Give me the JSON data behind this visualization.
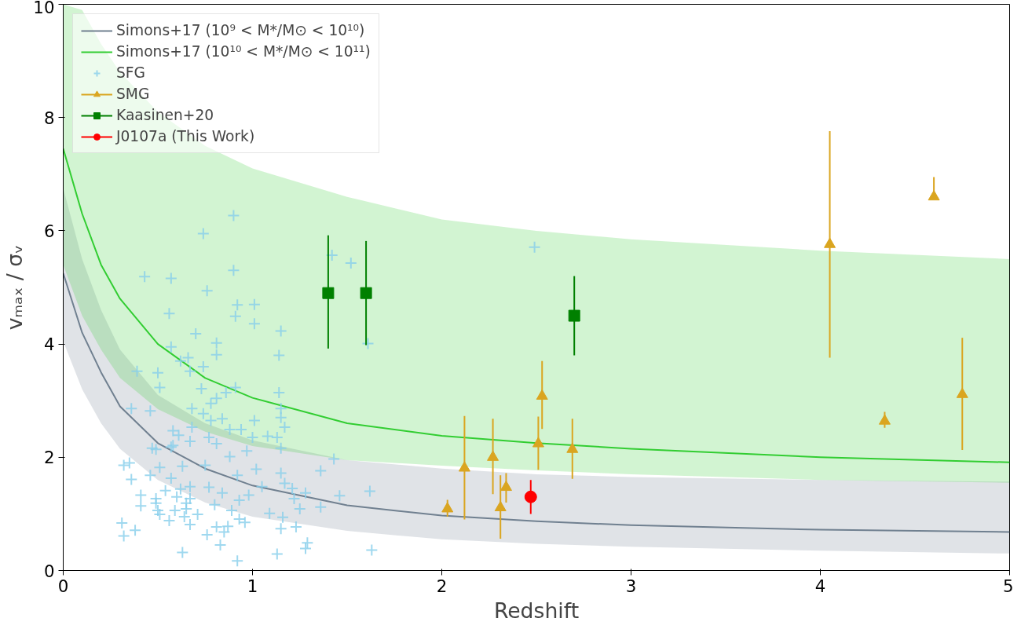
{
  "chart_data": {
    "type": "scatter",
    "xlabel": "Redshift",
    "ylabel": "vₘₐₓ / σᵥ",
    "xlim": [
      0,
      5
    ],
    "ylim": [
      0,
      10
    ],
    "xticks": [
      0,
      1,
      2,
      3,
      4,
      5
    ],
    "yticks": [
      0,
      2,
      4,
      6,
      8,
      10
    ],
    "grid": false,
    "legend": "top left",
    "series": [
      {
        "type": "line",
        "name": "Simons+17 (10⁹ < M*/M⊙ < 10¹⁰)",
        "color": "#708090",
        "x": [
          0,
          0.1,
          0.2,
          0.3,
          0.5,
          0.75,
          1,
          1.5,
          2,
          2.5,
          3,
          4,
          5
        ],
        "values": [
          5.25,
          4.2,
          3.5,
          2.9,
          2.25,
          1.8,
          1.5,
          1.15,
          0.97,
          0.87,
          0.8,
          0.72,
          0.68
        ],
        "lower": [
          4.05,
          3.2,
          2.6,
          2.15,
          1.6,
          1.2,
          0.95,
          0.7,
          0.55,
          0.47,
          0.42,
          0.35,
          0.3
        ],
        "upper": [
          6.75,
          5.5,
          4.6,
          3.9,
          3.1,
          2.6,
          2.3,
          1.95,
          1.8,
          1.7,
          1.65,
          1.6,
          1.57
        ]
      },
      {
        "type": "line",
        "name": "Simons+17 (10¹⁰ < M*/M⊙ < 10¹¹)",
        "color": "#32cd32",
        "x": [
          0,
          0.1,
          0.2,
          0.3,
          0.5,
          0.75,
          1,
          1.5,
          2,
          2.5,
          3,
          4,
          5
        ],
        "values": [
          7.45,
          6.3,
          5.4,
          4.8,
          4.0,
          3.4,
          3.05,
          2.6,
          2.38,
          2.25,
          2.15,
          2.0,
          1.91
        ],
        "lower": [
          5.4,
          4.5,
          3.9,
          3.4,
          2.85,
          2.45,
          2.2,
          1.95,
          1.85,
          1.77,
          1.7,
          1.6,
          1.55
        ],
        "upper": [
          10,
          9.9,
          9.3,
          8.8,
          8.1,
          7.5,
          7.1,
          6.6,
          6.2,
          6.0,
          5.85,
          5.65,
          5.5
        ]
      },
      {
        "name": "SFG",
        "color": "#87ceeb",
        "marker": "cross",
        "x": [
          0.9,
          0.74,
          0.43,
          0.57,
          0.9,
          0.76,
          0.92,
          1.01,
          0.91,
          1.01,
          0.56,
          0.7,
          1.15,
          0.81,
          0.81,
          1.14,
          0.66,
          1.42,
          1.52,
          1.61,
          2.49,
          0.57,
          0.39,
          0.5,
          0.67,
          0.74,
          0.62,
          0.51,
          0.73,
          0.81,
          0.86,
          0.91,
          1.14,
          1.15,
          1.15,
          1.17,
          0.36,
          0.46,
          0.68,
          0.74,
          0.78,
          0.78,
          0.84,
          1.01,
          0.68,
          0.58,
          0.61,
          0.77,
          0.81,
          0.67,
          0.58,
          0.88,
          0.94,
          1.0,
          1.08,
          1.13,
          1.15,
          0.97,
          0.88,
          0.75,
          1.43,
          1.36,
          1.02,
          1.15,
          0.92,
          1.17,
          1.05,
          1.21,
          1.28,
          1.46,
          1.62,
          1.22,
          1.25,
          1.36,
          0.98,
          0.93,
          0.84,
          0.77,
          0.67,
          0.62,
          0.8,
          0.89,
          0.71,
          0.67,
          0.65,
          0.6,
          0.54,
          0.46,
          0.51,
          0.57,
          0.63,
          0.47,
          0.49,
          0.57,
          0.35,
          0.32,
          0.36,
          0.41,
          0.41,
          0.49,
          0.49,
          0.5,
          0.51,
          0.56,
          0.59,
          0.64,
          0.67,
          0.65,
          0.31,
          0.38,
          0.32,
          0.76,
          0.81,
          0.85,
          0.87,
          0.83,
          0.93,
          0.96,
          1.09,
          1.16,
          1.15,
          1.23,
          1.29,
          1.28,
          0.63,
          0.92,
          1.13,
          1.63
        ],
        "values": [
          6.27,
          5.95,
          5.19,
          5.16,
          5.3,
          4.94,
          4.69,
          4.7,
          4.49,
          4.36,
          4.54,
          4.18,
          4.23,
          4.02,
          3.81,
          3.8,
          3.76,
          5.57,
          5.43,
          4.01,
          5.71,
          3.95,
          3.52,
          3.49,
          3.52,
          3.6,
          3.7,
          3.23,
          3.21,
          3.04,
          3.14,
          3.23,
          3.14,
          2.86,
          2.7,
          2.53,
          2.86,
          2.82,
          2.86,
          2.77,
          2.95,
          2.65,
          2.68,
          2.65,
          2.53,
          2.47,
          2.39,
          2.35,
          2.24,
          2.28,
          2.21,
          2.49,
          2.49,
          2.35,
          2.37,
          2.35,
          2.16,
          2.11,
          2.01,
          1.86,
          1.97,
          1.76,
          1.79,
          1.72,
          1.68,
          1.54,
          1.48,
          1.45,
          1.37,
          1.32,
          1.4,
          1.27,
          1.09,
          1.12,
          1.33,
          1.24,
          1.37,
          1.47,
          1.48,
          1.44,
          1.16,
          1.06,
          0.99,
          1.27,
          1.19,
          1.3,
          1.41,
          1.68,
          1.82,
          1.63,
          1.84,
          2.16,
          2.14,
          2.18,
          1.9,
          1.86,
          1.61,
          1.33,
          1.14,
          1.27,
          1.19,
          1.06,
          0.99,
          0.88,
          1.06,
          0.95,
          0.81,
          1.09,
          0.84,
          0.71,
          0.61,
          0.63,
          0.77,
          0.68,
          0.78,
          0.45,
          0.91,
          0.85,
          1.01,
          0.94,
          0.74,
          0.77,
          0.49,
          0.39,
          0.32,
          0.17,
          0.29,
          0.36
        ]
      },
      {
        "name": "SMG",
        "color": "#daa520",
        "marker": "triangle",
        "x": [
          2.03,
          2.12,
          2.27,
          2.31,
          2.34,
          2.51,
          2.53,
          2.69,
          4.05,
          4.34,
          4.6,
          4.75
        ],
        "values": [
          1.09,
          1.81,
          2.0,
          1.11,
          1.47,
          2.24,
          3.08,
          2.14,
          5.76,
          2.64,
          6.6,
          3.11
        ],
        "errors": [
          [
            0.95,
            1.25
          ],
          [
            0.9,
            2.73
          ],
          [
            1.35,
            2.68
          ],
          [
            0.56,
            1.68
          ],
          [
            1.2,
            1.72
          ],
          [
            1.78,
            2.72
          ],
          [
            2.5,
            3.7
          ],
          [
            1.62,
            2.68
          ],
          [
            3.76,
            7.76
          ],
          [
            2.52,
            2.8
          ],
          [
            6.6,
            6.95
          ],
          [
            2.13,
            4.11
          ]
        ]
      },
      {
        "name": "Kaasinen+20",
        "color": "#008000",
        "marker": "square",
        "x": [
          1.4,
          1.6,
          2.7
        ],
        "values": [
          4.9,
          4.9,
          4.5
        ],
        "errors": [
          [
            3.92,
            5.92
          ],
          [
            3.98,
            5.82
          ],
          [
            3.8,
            5.2
          ]
        ]
      },
      {
        "name": "J0107a (This Work)",
        "color": "#ff0000",
        "marker": "circle",
        "x": [
          2.47
        ],
        "values": [
          1.3
        ],
        "errors": [
          [
            1.0,
            1.6
          ]
        ]
      }
    ]
  }
}
